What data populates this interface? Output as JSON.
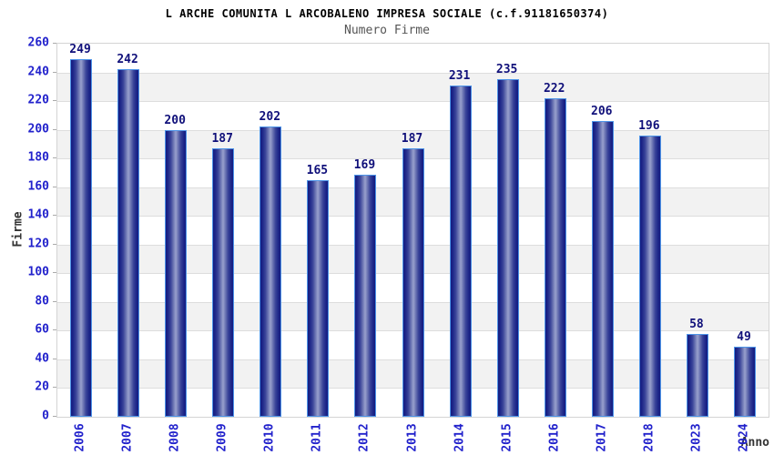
{
  "header": {
    "title": "L ARCHE COMUNITA L ARCOBALENO IMPRESA SOCIALE (c.f.91181650374)",
    "subtitle": "Numero Firme"
  },
  "chart_data": {
    "type": "bar",
    "title": "L ARCHE COMUNITA L ARCOBALENO IMPRESA SOCIALE (c.f.91181650374)",
    "subtitle": "Numero Firme",
    "categories": [
      "2006",
      "2007",
      "2008",
      "2009",
      "2010",
      "2011",
      "2012",
      "2013",
      "2014",
      "2015",
      "2016",
      "2017",
      "2018",
      "2023",
      "2024"
    ],
    "values": [
      249,
      242,
      200,
      187,
      202,
      165,
      169,
      187,
      231,
      235,
      222,
      206,
      196,
      58,
      49
    ],
    "xlabel": "Anno",
    "ylabel": "Firme",
    "ylim": [
      0,
      260
    ],
    "ytick_step": 20,
    "grid": true,
    "legend_position": "none",
    "band_colors": [
      "#ffffff",
      "#f2f2f2"
    ],
    "colors": {
      "tick_label": "#2222cc",
      "value_label": "#10107a",
      "bar_border": "#4d94e8",
      "bar_edge": "#141c80",
      "bar_center": "#99a1cd",
      "gridline": "#dddddd",
      "plot_border": "#d4d4d4",
      "axis_title": "#333333",
      "subtitle": "#555555",
      "title": "#000000"
    }
  }
}
